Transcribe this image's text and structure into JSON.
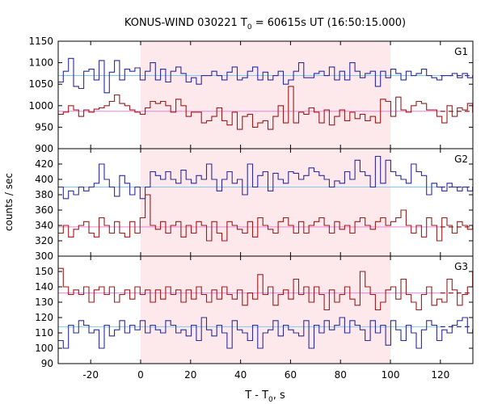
{
  "title": {
    "prefix": "KONUS-WIND 030221 T",
    "sub": "0",
    "suffix": " = 60615s UT (16:50:15.000)"
  },
  "xlabel": {
    "prefix": "T - T",
    "sub": "0",
    "suffix": ", s"
  },
  "ylabel": "counts / sec",
  "colors": {
    "series_blue": "#2b2b9e",
    "series_red": "#9b1b1b",
    "bg_line_blue": "#7fc8f0",
    "bg_line_red": "#f080d8",
    "highlight": "#fde8ec"
  },
  "chart_data": [
    {
      "type": "line",
      "panel": "G1",
      "label": "G1",
      "xlim": [
        -33,
        133
      ],
      "ylim": [
        900,
        1150
      ],
      "yticks": [
        900,
        950,
        1000,
        1050,
        1100,
        1150
      ],
      "xticks": [
        -20,
        0,
        20,
        40,
        60,
        80,
        100,
        120
      ],
      "highlight_x": [
        0,
        100
      ],
      "bin_width": 2.048,
      "x_start": -33,
      "series": [
        {
          "color": "blue",
          "values": [
            1055,
            1080,
            1110,
            1045,
            1040,
            1080,
            1085,
            1060,
            1105,
            1030,
            1078,
            1105,
            1060,
            1085,
            1080,
            1088,
            1060,
            1080,
            1100,
            1060,
            1085,
            1055,
            1080,
            1090,
            1075,
            1055,
            1065,
            1050,
            1070,
            1070,
            1080,
            1070,
            1060,
            1078,
            1090,
            1060,
            1065,
            1080,
            1090,
            1060,
            1078,
            1060,
            1070,
            1080,
            1050,
            1060,
            1080,
            1100,
            1065,
            1065,
            1075,
            1080,
            1070,
            1090,
            1060,
            1080,
            1060,
            1100,
            1080,
            1065,
            1075,
            1080,
            1045,
            1080,
            1065,
            1085,
            1075,
            1060,
            1080,
            1070,
            1075,
            1085,
            1070,
            1065,
            1060,
            1070,
            1070,
            1075,
            1065,
            1075,
            1065,
            1070
          ]
        },
        {
          "color": "red",
          "values": [
            980,
            985,
            1000,
            990,
            975,
            990,
            985,
            992,
            995,
            1000,
            1010,
            1025,
            1005,
            1000,
            990,
            985,
            980,
            995,
            1010,
            1005,
            1010,
            1000,
            985,
            1015,
            1000,
            975,
            985,
            985,
            960,
            965,
            975,
            995,
            965,
            955,
            985,
            945,
            975,
            980,
            950,
            960,
            965,
            945,
            975,
            1000,
            960,
            1045,
            960,
            985,
            980,
            995,
            985,
            960,
            990,
            955,
            975,
            990,
            965,
            985,
            970,
            980,
            965,
            975,
            960,
            1015,
            1010,
            975,
            1020,
            990,
            985,
            1000,
            1010,
            1005,
            990,
            990,
            975,
            960,
            1000,
            975,
            995,
            990,
            1005,
            985
          ]
        }
      ],
      "bg_fits": [
        {
          "color": "blue",
          "value": 1070
        },
        {
          "color": "red",
          "value": 987
        }
      ]
    },
    {
      "type": "line",
      "panel": "G2",
      "label": "G2",
      "xlim": [
        -33,
        133
      ],
      "ylim": [
        300,
        440
      ],
      "yticks": [
        300,
        320,
        340,
        360,
        380,
        400,
        420,
        440
      ],
      "xticks": [
        -20,
        0,
        20,
        40,
        60,
        80,
        100,
        120
      ],
      "highlight_x": [
        0,
        100
      ],
      "bin_width": 2.048,
      "x_start": -33,
      "series": [
        {
          "color": "blue",
          "values": [
            390,
            375,
            385,
            380,
            390,
            385,
            390,
            395,
            420,
            400,
            390,
            378,
            405,
            395,
            380,
            390,
            375,
            390,
            410,
            405,
            400,
            410,
            400,
            395,
            412,
            400,
            395,
            405,
            400,
            420,
            400,
            385,
            400,
            410,
            395,
            400,
            380,
            420,
            390,
            405,
            410,
            385,
            408,
            400,
            395,
            410,
            408,
            400,
            405,
            415,
            410,
            405,
            400,
            390,
            398,
            395,
            410,
            400,
            425,
            410,
            405,
            390,
            430,
            395,
            425,
            410,
            405,
            400,
            395,
            420,
            410,
            405,
            380,
            395,
            390,
            385,
            395,
            390,
            385,
            390,
            385,
            390
          ]
        },
        {
          "color": "red",
          "values": [
            330,
            340,
            325,
            335,
            340,
            345,
            330,
            325,
            350,
            340,
            330,
            345,
            330,
            325,
            345,
            330,
            350,
            380,
            340,
            335,
            345,
            330,
            340,
            345,
            325,
            340,
            330,
            345,
            340,
            320,
            345,
            330,
            320,
            345,
            340,
            335,
            330,
            345,
            325,
            350,
            340,
            335,
            330,
            345,
            350,
            340,
            330,
            345,
            330,
            340,
            345,
            350,
            340,
            330,
            345,
            335,
            340,
            330,
            345,
            350,
            340,
            335,
            345,
            350,
            340,
            345,
            350,
            360,
            340,
            330,
            340,
            325,
            350,
            340,
            320,
            350,
            340,
            330,
            345,
            340,
            335,
            340
          ]
        }
      ],
      "bg_fits": [
        {
          "color": "blue",
          "value": 390
        },
        {
          "color": "red",
          "value": 338
        }
      ]
    },
    {
      "type": "line",
      "panel": "G3",
      "label": "G3",
      "xlim": [
        -33,
        133
      ],
      "ylim": [
        90,
        160
      ],
      "yticks": [
        90,
        100,
        110,
        120,
        130,
        140,
        150,
        160
      ],
      "xticks": [
        -20,
        0,
        20,
        40,
        60,
        80,
        100,
        120
      ],
      "highlight_x": [
        0,
        100
      ],
      "bin_width": 2.048,
      "x_start": -33,
      "series": [
        {
          "color": "blue",
          "values": [
            105,
            100,
            115,
            110,
            118,
            115,
            110,
            112,
            100,
            115,
            108,
            112,
            118,
            110,
            115,
            112,
            118,
            110,
            115,
            112,
            110,
            118,
            115,
            110,
            112,
            108,
            115,
            105,
            120,
            112,
            108,
            115,
            110,
            100,
            118,
            112,
            110,
            105,
            115,
            100,
            110,
            112,
            118,
            108,
            115,
            112,
            110,
            108,
            118,
            100,
            115,
            110,
            118,
            112,
            115,
            120,
            110,
            118,
            115,
            112,
            105,
            118,
            110,
            115,
            102,
            118,
            112,
            105,
            115,
            110,
            100,
            112,
            118,
            115,
            105,
            112,
            110,
            115,
            118,
            120,
            110,
            112
          ]
        },
        {
          "color": "red",
          "values": [
            152,
            140,
            135,
            138,
            135,
            140,
            130,
            138,
            140,
            135,
            140,
            130,
            135,
            138,
            132,
            140,
            135,
            138,
            130,
            138,
            132,
            140,
            135,
            138,
            130,
            138,
            132,
            140,
            135,
            130,
            138,
            132,
            140,
            135,
            132,
            138,
            128,
            136,
            132,
            148,
            135,
            140,
            128,
            135,
            138,
            132,
            145,
            135,
            140,
            130,
            140,
            135,
            125,
            138,
            130,
            135,
            140,
            132,
            128,
            150,
            140,
            135,
            125,
            130,
            138,
            140,
            132,
            145,
            135,
            130,
            125,
            135,
            140,
            128,
            132,
            130,
            145,
            138,
            128,
            135,
            140,
            150
          ]
        }
      ],
      "bg_fits": [
        {
          "color": "blue",
          "value": 114
        },
        {
          "color": "red",
          "value": 136
        }
      ]
    }
  ]
}
